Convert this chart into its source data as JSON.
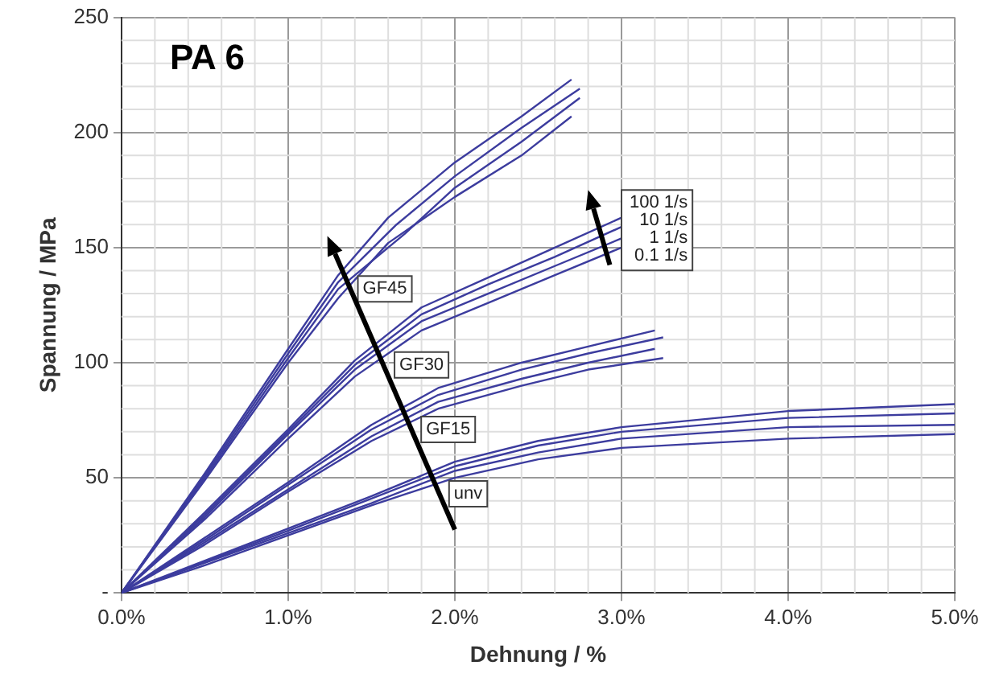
{
  "chart_data": {
    "type": "line",
    "title": "PA 6",
    "xlabel": "Dehnung / %",
    "ylabel": "Spannung / MPa",
    "xlim": [
      0,
      5
    ],
    "xticks": [
      {
        "value": 0,
        "label": "0.0%"
      },
      {
        "value": 1,
        "label": "1.0%"
      },
      {
        "value": 2,
        "label": "2.0%"
      },
      {
        "value": 3,
        "label": "3.0%"
      },
      {
        "value": 4,
        "label": "4.0%"
      },
      {
        "value": 5,
        "label": "5.0%"
      }
    ],
    "ylim": [
      0,
      250
    ],
    "yticks": [
      {
        "value": 0,
        "label": "-"
      },
      50,
      100,
      150,
      200,
      250
    ],
    "grid": true,
    "legend": false,
    "marker": "none",
    "line_style": "solid",
    "annotations": [
      {
        "text": "GF45",
        "x": 1.58,
        "y": 132
      },
      {
        "text": "GF30",
        "x": 1.8,
        "y": 99
      },
      {
        "text": "GF15",
        "x": 1.96,
        "y": 71
      },
      {
        "text": "unv",
        "x": 2.08,
        "y": 43
      },
      "100 1/s",
      "10 1/s",
      "1 1/s",
      "0.1 1/s"
    ],
    "series": [
      {
        "color": "#3c3c9e",
        "x": [
          0,
          0.5,
          1.0,
          1.3,
          1.6,
          2.0,
          2.4,
          2.7
        ],
        "values": [
          0,
          52,
          106,
          138,
          163,
          187,
          207,
          223
        ]
      },
      {
        "color": "#3c3c9e",
        "x": [
          0,
          0.5,
          1.0,
          1.3,
          1.65,
          2.0,
          2.4,
          2.75
        ],
        "values": [
          0,
          51,
          104,
          135,
          160,
          181,
          202,
          219
        ]
      },
      {
        "color": "#3c3c9e",
        "x": [
          0,
          0.5,
          1.0,
          1.3,
          1.7,
          2.0,
          2.4,
          2.75
        ],
        "values": [
          0,
          50,
          102,
          132,
          156,
          176,
          196,
          215
        ]
      },
      {
        "color": "#3c3c9e",
        "x": [
          0,
          0.5,
          1.0,
          1.3,
          1.6,
          2.0,
          2.4,
          2.7
        ],
        "values": [
          0,
          49,
          100,
          128,
          152,
          172,
          190,
          207
        ]
      },
      {
        "color": "#3c3c9e",
        "x": [
          0,
          0.5,
          1.0,
          1.4,
          1.8,
          2.2,
          2.6,
          3.0
        ],
        "values": [
          0,
          35,
          71,
          101,
          124,
          137,
          150,
          163
        ]
      },
      {
        "color": "#3c3c9e",
        "x": [
          0,
          0.5,
          1.0,
          1.4,
          1.8,
          2.2,
          2.6,
          3.0
        ],
        "values": [
          0,
          34,
          70,
          99,
          121,
          134,
          146,
          159
        ]
      },
      {
        "color": "#3c3c9e",
        "x": [
          0,
          0.5,
          1.0,
          1.4,
          1.8,
          2.2,
          2.6,
          3.0
        ],
        "values": [
          0,
          33,
          69,
          97,
          118,
          130,
          142,
          154
        ]
      },
      {
        "color": "#3c3c9e",
        "x": [
          0,
          0.5,
          1.0,
          1.4,
          1.8,
          2.2,
          2.6,
          3.0
        ],
        "values": [
          0,
          32,
          67,
          94,
          114,
          126,
          138,
          150
        ]
      },
      {
        "color": "#3c3c9e",
        "x": [
          0,
          0.5,
          1.0,
          1.5,
          1.9,
          2.4,
          2.8,
          3.2
        ],
        "values": [
          0,
          24,
          48,
          73,
          89,
          100,
          107,
          114
        ]
      },
      {
        "color": "#3c3c9e",
        "x": [
          0,
          0.5,
          1.0,
          1.5,
          1.9,
          2.4,
          2.8,
          3.25
        ],
        "values": [
          0,
          23,
          47,
          71,
          86,
          97,
          104,
          111
        ]
      },
      {
        "color": "#3c3c9e",
        "x": [
          0,
          0.5,
          1.0,
          1.5,
          1.9,
          2.4,
          2.8,
          3.2
        ],
        "values": [
          0,
          22,
          45,
          68,
          83,
          93,
          100,
          106
        ]
      },
      {
        "color": "#3c3c9e",
        "x": [
          0,
          0.5,
          1.0,
          1.5,
          1.9,
          2.4,
          2.8,
          3.25
        ],
        "values": [
          0,
          21,
          44,
          66,
          80,
          90,
          97,
          102
        ]
      },
      {
        "color": "#3c3c9e",
        "x": [
          0,
          0.5,
          1.0,
          1.5,
          2.0,
          2.5,
          3.0,
          4.0,
          5.0
        ],
        "values": [
          0,
          14,
          28,
          42,
          57,
          66,
          72,
          79,
          82
        ]
      },
      {
        "color": "#3c3c9e",
        "x": [
          0,
          0.5,
          1.0,
          1.5,
          2.0,
          2.5,
          3.0,
          4.0,
          5.0
        ],
        "values": [
          0,
          13.5,
          27,
          41,
          55,
          64,
          70,
          76,
          78
        ]
      },
      {
        "color": "#3c3c9e",
        "x": [
          0,
          0.5,
          1.0,
          1.5,
          2.0,
          2.5,
          3.0,
          4.0,
          5.0
        ],
        "values": [
          0,
          13,
          26,
          39,
          53,
          61,
          67,
          72,
          73
        ]
      },
      {
        "color": "#3c3c9e",
        "x": [
          0,
          0.5,
          1.0,
          1.5,
          2.0,
          2.5,
          3.0,
          4.0,
          5.0
        ],
        "values": [
          0,
          12,
          25,
          38,
          50,
          58,
          63,
          67,
          69
        ]
      }
    ]
  }
}
